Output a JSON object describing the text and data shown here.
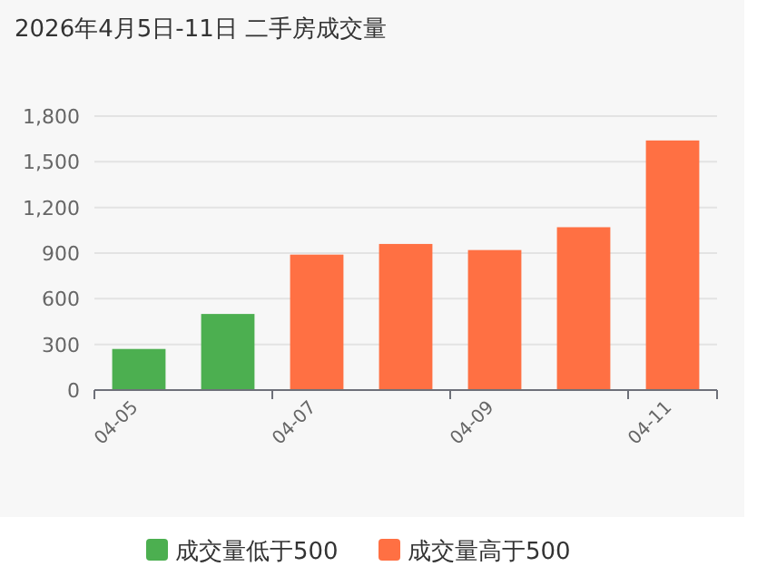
{
  "chart_data": {
    "type": "bar",
    "title": "2026年4月5日-11日 二手房成交量",
    "categories": [
      "04-05",
      null,
      "04-07",
      null,
      "04-09",
      null,
      "04-11"
    ],
    "series": [
      {
        "name": "成交量低于500",
        "color": "#4caf50",
        "values": [
          270,
          500,
          null,
          null,
          null,
          null,
          null
        ]
      },
      {
        "name": "成交量高于500",
        "color": "#ff7043",
        "values": [
          null,
          null,
          890,
          960,
          920,
          1070,
          1640
        ]
      }
    ],
    "ylim": [
      0,
      1800
    ],
    "yticks": [
      0,
      300,
      600,
      900,
      {
        "value": 1200,
        "label": "1,200"
      },
      {
        "value": 1500,
        "label": "1,500"
      },
      {
        "value": 1800,
        "label": "1,800"
      }
    ],
    "grid": "y",
    "legend": "bottom"
  }
}
